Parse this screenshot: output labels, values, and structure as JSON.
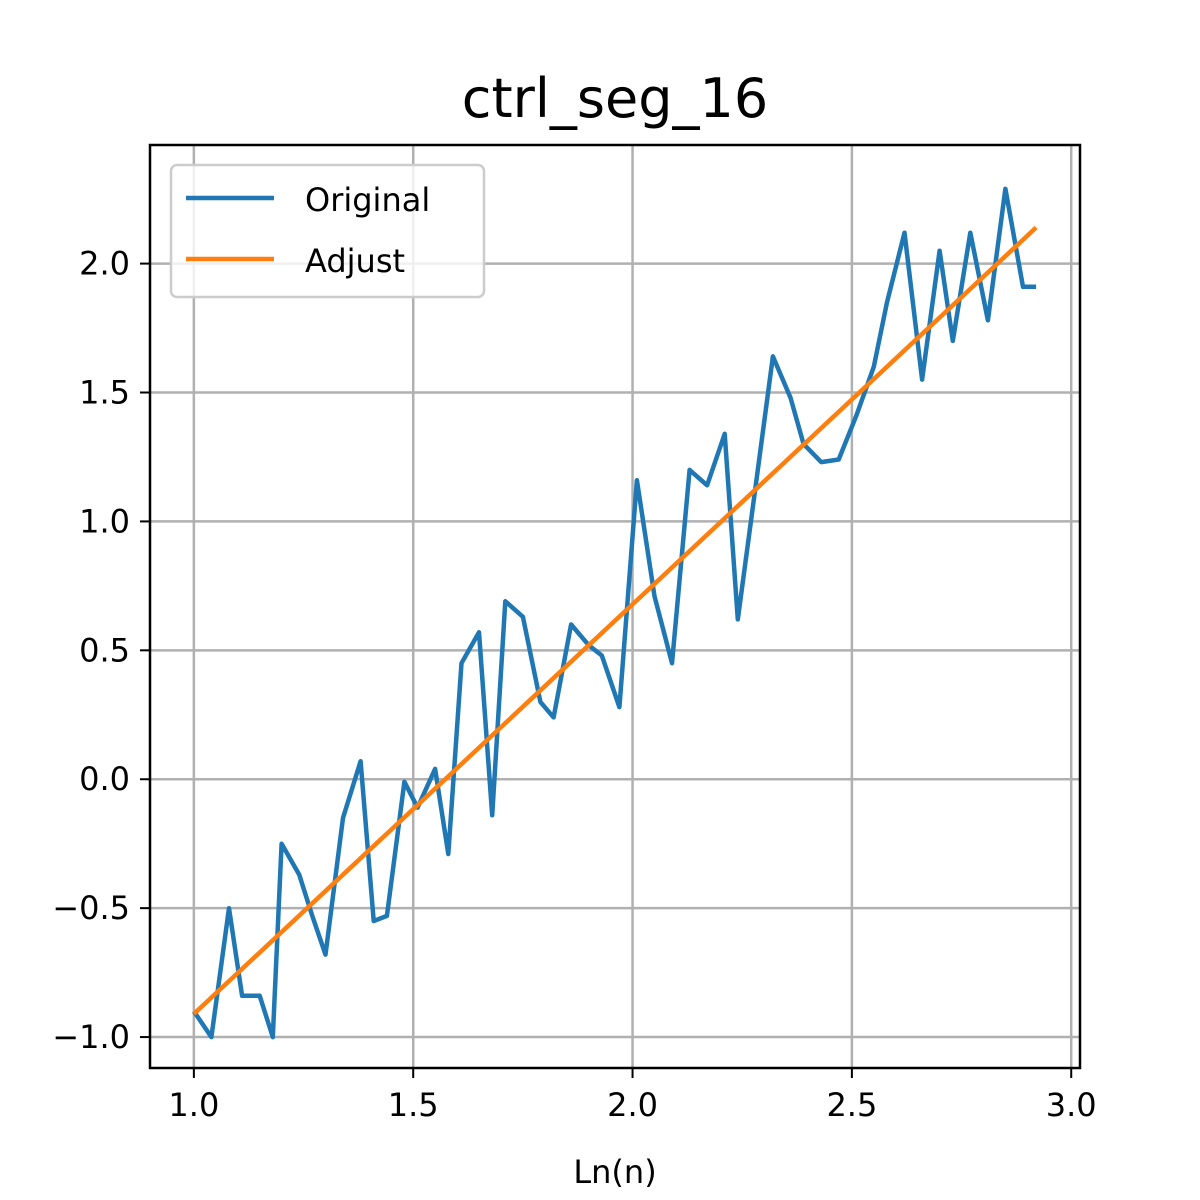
{
  "chart_data": {
    "type": "line",
    "title": "ctrl_seg_16",
    "xlabel": "Ln(n)",
    "ylabel": "",
    "xlim": [
      0.9,
      3.02
    ],
    "ylim": [
      -1.12,
      2.46
    ],
    "xticks": [
      1.0,
      1.5,
      2.0,
      2.5,
      3.0
    ],
    "xtick_labels": [
      "1.0",
      "1.5",
      "2.0",
      "2.5",
      "3.0"
    ],
    "yticks": [
      -1.0,
      -0.5,
      0.0,
      0.5,
      1.0,
      1.5,
      2.0
    ],
    "ytick_labels": [
      "−1.0",
      "−0.5",
      "0.0",
      "0.5",
      "1.0",
      "1.5",
      "2.0"
    ],
    "grid": true,
    "legend_position": "top-left",
    "series": [
      {
        "name": "Original",
        "color": "#1f77b4",
        "x": [
          1.0,
          1.04,
          1.08,
          1.11,
          1.15,
          1.18,
          1.2,
          1.24,
          1.27,
          1.3,
          1.34,
          1.38,
          1.41,
          1.44,
          1.48,
          1.51,
          1.55,
          1.58,
          1.61,
          1.65,
          1.68,
          1.71,
          1.75,
          1.79,
          1.82,
          1.86,
          1.9,
          1.93,
          1.97,
          2.01,
          2.05,
          2.09,
          2.13,
          2.17,
          2.21,
          2.24,
          2.28,
          2.32,
          2.36,
          2.39,
          2.43,
          2.47,
          2.51,
          2.55,
          2.58,
          2.62,
          2.66,
          2.7,
          2.73,
          2.77,
          2.81,
          2.85,
          2.89,
          2.92
        ],
        "y": [
          -0.9,
          -1.0,
          -0.5,
          -0.84,
          -0.84,
          -1.0,
          -0.25,
          -0.37,
          -0.53,
          -0.68,
          -0.15,
          0.07,
          -0.55,
          -0.53,
          -0.01,
          -0.11,
          0.04,
          -0.29,
          0.45,
          0.57,
          -0.14,
          0.69,
          0.63,
          0.3,
          0.24,
          0.6,
          0.52,
          0.48,
          0.28,
          1.16,
          0.71,
          0.45,
          1.2,
          1.14,
          1.34,
          0.62,
          1.13,
          1.64,
          1.48,
          1.3,
          1.23,
          1.24,
          1.41,
          1.6,
          1.85,
          2.12,
          1.55,
          2.05,
          1.7,
          2.12,
          1.78,
          2.29,
          1.91,
          1.91
        ]
      },
      {
        "name": "Adjust",
        "color": "#ff7f0e",
        "x": [
          1.0,
          2.92
        ],
        "y": [
          -0.91,
          2.14
        ]
      }
    ]
  }
}
